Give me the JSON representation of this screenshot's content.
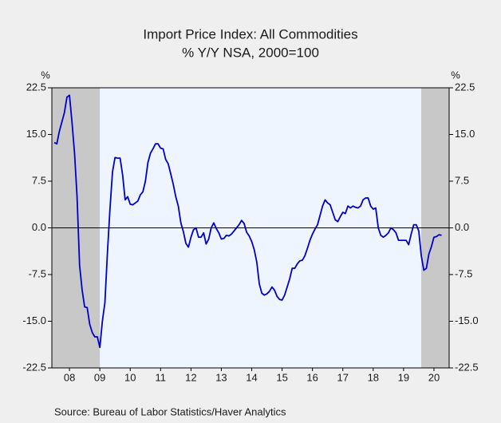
{
  "chart_data": {
    "type": "line",
    "title": "Import Price Index: All Commodities",
    "subtitle": "% Y/Y   NSA, 2000=100",
    "ylabel": "%",
    "y2label": "%",
    "source": "Source:  Bureau of Labor Statistics/Haver Analytics",
    "color": "#0000cc",
    "x": [
      2008,
      2008.083,
      2008.167,
      2008.25,
      2008.333,
      2008.417,
      2008.5,
      2008.583,
      2008.667,
      2008.75,
      2008.833,
      2008.917,
      2009,
      2009.083,
      2009.167,
      2009.25,
      2009.333,
      2009.417,
      2009.5,
      2009.583,
      2009.667,
      2009.75,
      2009.833,
      2009.917,
      2010,
      2010.083,
      2010.167,
      2010.25,
      2010.333,
      2010.417,
      2010.5,
      2010.583,
      2010.667,
      2010.75,
      2010.833,
      2010.917,
      2011,
      2011.083,
      2011.167,
      2011.25,
      2011.333,
      2011.417,
      2011.5,
      2011.583,
      2011.667,
      2011.75,
      2011.833,
      2011.917,
      2012,
      2012.083,
      2012.167,
      2012.25,
      2012.333,
      2012.417,
      2012.5,
      2012.583,
      2012.667,
      2012.75,
      2012.833,
      2012.917,
      2013,
      2013.083,
      2013.167,
      2013.25,
      2013.333,
      2013.417,
      2013.5,
      2013.583,
      2013.667,
      2013.75,
      2013.833,
      2013.917,
      2014,
      2014.083,
      2014.167,
      2014.25,
      2014.333,
      2014.417,
      2014.5,
      2014.583,
      2014.667,
      2014.75,
      2014.833,
      2014.917,
      2015,
      2015.083,
      2015.167,
      2015.25,
      2015.333,
      2015.417,
      2015.5,
      2015.583,
      2015.667,
      2015.75,
      2015.833,
      2015.917,
      2016,
      2016.083,
      2016.167,
      2016.25,
      2016.333,
      2016.417,
      2016.5,
      2016.583,
      2016.667,
      2016.75,
      2016.833,
      2016.917,
      2017,
      2017.083,
      2017.167,
      2017.25,
      2017.333,
      2017.417,
      2017.5,
      2017.583,
      2017.667,
      2017.75,
      2017.833,
      2017.917,
      2018,
      2018.083,
      2018.167,
      2018.25,
      2018.333,
      2018.417,
      2018.5,
      2018.583,
      2018.667,
      2018.75,
      2018.833,
      2018.917,
      2019,
      2019.083,
      2019.167,
      2019.25,
      2019.333,
      2019.417,
      2019.5,
      2019.583,
      2019.667,
      2019.75,
      2019.833,
      2019.917,
      2020,
      2020.083,
      2020.167,
      2020.25,
      2020.333,
      2020.417,
      2020.5,
      2020.583,
      2020.667,
      2020.75
    ],
    "values": [
      13.7,
      13.5,
      15.5,
      17,
      18.5,
      21,
      21.3,
      17,
      12,
      5,
      -6,
      -10,
      -12.7,
      -12.8,
      -15.5,
      -16.8,
      -17.5,
      -17.5,
      -19.2,
      -15,
      -12,
      -4,
      3,
      9,
      11.3,
      11.2,
      11.2,
      8.5,
      4.5,
      5,
      3.8,
      3.7,
      4,
      4.3,
      5.3,
      5.8,
      7.5,
      10.5,
      12,
      12.7,
      13.5,
      13.5,
      12.8,
      12.7,
      11,
      10.3,
      8.7,
      7,
      5,
      3.5,
      0.8,
      -0.6,
      -2.5,
      -3.1,
      -1.5,
      -0.3,
      0,
      -1.5,
      -1.5,
      -0.8,
      -2.6,
      -1.8,
      0,
      0.8,
      -0.1,
      -0.8,
      -1.8,
      -1.7,
      -1.2,
      -1.3,
      -1,
      -0.5,
      0,
      0.5,
      1.2,
      0.7,
      -0.7,
      -1.3,
      -2.2,
      -3.5,
      -5.5,
      -9,
      -10.5,
      -10.8,
      -10.6,
      -10.2,
      -9.5,
      -10,
      -11,
      -11.5,
      -11.6,
      -10.8,
      -9.5,
      -8.2,
      -6.5,
      -6.5,
      -5.8,
      -5.3,
      -5.2,
      -4.5,
      -3.3,
      -2,
      -1,
      -0.2,
      0.5,
      2,
      3.5,
      4.5,
      4,
      3.7,
      2.5,
      1.3,
      1,
      1.8,
      2.5,
      2.3,
      3.5,
      3.2,
      3.5,
      3.3,
      3.2,
      3.5,
      4.5,
      4.8,
      4.8,
      3.5,
      3,
      3.2,
      0,
      -1.2,
      -1.5,
      -1.2,
      -0.8,
      0,
      -0.3,
      -0.8,
      -2,
      -2,
      -2,
      -2,
      -2.7,
      -1,
      0.5,
      0.5,
      -0.5,
      -4.5,
      -6.8,
      -6.5,
      -4.2,
      -3,
      -1.5,
      -1.4,
      -1.1,
      -1.2
    ],
    "shading": [
      {
        "x0": 2007.92,
        "x1": 2009.5
      },
      {
        "x0": 2020.08,
        "x1": 2021
      }
    ],
    "hline": 0,
    "xlim": [
      2007.92,
      2021
    ],
    "xticks": [
      {
        "value": 2008.5,
        "label": "08"
      },
      {
        "value": 2009.5,
        "label": "09"
      },
      {
        "value": 2010.5,
        "label": "10"
      },
      {
        "value": 2011.5,
        "label": "11"
      },
      {
        "value": 2012.5,
        "label": "12"
      },
      {
        "value": 2013.5,
        "label": "13"
      },
      {
        "value": 2014.5,
        "label": "14"
      },
      {
        "value": 2015.5,
        "label": "15"
      },
      {
        "value": 2016.5,
        "label": "16"
      },
      {
        "value": 2017.5,
        "label": "17"
      },
      {
        "value": 2018.5,
        "label": "18"
      },
      {
        "value": 2019.5,
        "label": "19"
      },
      {
        "value": 2020.5,
        "label": "20"
      }
    ],
    "ylim": [
      -22.5,
      22.5
    ],
    "yticks": [
      22.5,
      {
        "value": 15,
        "label": "15.0"
      },
      7.5,
      {
        "value": 0,
        "label": "0.0"
      },
      -7.5,
      {
        "value": -15,
        "label": "-15.0"
      },
      -22.5
    ],
    "y2lim": [
      -22.5,
      22.5
    ],
    "y2ticks": [
      22.5,
      {
        "value": 15,
        "label": "15.0"
      },
      7.5,
      {
        "value": 0,
        "label": "0.0"
      },
      -7.5,
      {
        "value": -15,
        "label": "-15.0"
      },
      -22.5
    ]
  }
}
